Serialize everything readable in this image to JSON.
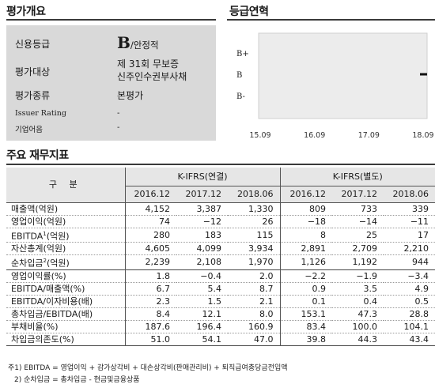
{
  "summary": {
    "title": "평가개요",
    "rows": [
      {
        "label": "신용등급",
        "value_main": "B",
        "value_suffix": "/안정적"
      },
      {
        "label": "평가대상",
        "value_line1": "제 31회 무보증",
        "value_line2": "신주인수권부사채"
      },
      {
        "label": "평가종류",
        "value": "본평가"
      },
      {
        "label": "Issuer Rating",
        "value": "-"
      },
      {
        "label": "기업어음",
        "value": "-"
      }
    ]
  },
  "history": {
    "title": "등급연혁",
    "chart_data": {
      "type": "line",
      "title": "",
      "y_categories": [
        "B+",
        "B",
        "B-"
      ],
      "x_ticks": [
        "15.09",
        "16.09",
        "17.09",
        "18.09"
      ],
      "series": [
        {
          "points": [
            {
              "x": "18.09",
              "y": "B"
            }
          ]
        }
      ],
      "grid": false
    }
  },
  "financials": {
    "title": "주요 재무지표",
    "gubun": "구 분",
    "group_consolidated": "K-IFRS(연결)",
    "group_separate": "K-IFRS(별도)",
    "years": [
      "2016.12",
      "2017.12",
      "2018.06",
      "2016.12",
      "2017.12",
      "2018.06"
    ],
    "rows": [
      {
        "label": "매출액(억원)",
        "values": [
          "4,152",
          "3,387",
          "1,330",
          "809",
          "733",
          "339"
        ]
      },
      {
        "label": "영업이익(억원)",
        "values": [
          "74",
          "−12",
          "26",
          "−18",
          "−14",
          "−11"
        ]
      },
      {
        "label": "EBITDA",
        "label_sup": "1",
        "label_tail": "(억원)",
        "values": [
          "280",
          "183",
          "115",
          "8",
          "25",
          "17"
        ]
      },
      {
        "label": "자산총계(억원)",
        "values": [
          "4,605",
          "4,099",
          "3,934",
          "2,891",
          "2,709",
          "2,210"
        ]
      },
      {
        "label": "순차입금",
        "label_sup": "2",
        "label_tail": "(억원)",
        "values": [
          "2,239",
          "2,108",
          "1,970",
          "1,126",
          "1,192",
          "944"
        ]
      },
      {
        "label": "영업이익률(%)",
        "values": [
          "1.8",
          "−0.4",
          "2.0",
          "−2.2",
          "−1.9",
          "−3.4"
        ]
      },
      {
        "label": "EBITDA/매출액(%)",
        "values": [
          "6.7",
          "5.4",
          "8.7",
          "0.9",
          "3.5",
          "4.9"
        ]
      },
      {
        "label": "EBITDA/이자비용(배)",
        "values": [
          "2.3",
          "1.5",
          "2.1",
          "0.1",
          "0.4",
          "0.5"
        ]
      },
      {
        "label": "총차입금/EBITDA(배)",
        "values": [
          "8.4",
          "12.1",
          "8.0",
          "153.1",
          "47.3",
          "28.8"
        ]
      },
      {
        "label": "부채비율(%)",
        "values": [
          "187.6",
          "196.4",
          "160.9",
          "83.4",
          "100.0",
          "104.1"
        ]
      },
      {
        "label": "차입금의존도(%)",
        "values": [
          "51.0",
          "54.1",
          "47.0",
          "39.8",
          "44.3",
          "43.4"
        ]
      }
    ],
    "notes": [
      "주1) EBITDA = 영업이익 + 감가상각비 + 대손상각비(판매관리비) + 퇴직급여충당금전입액",
      "2) 순차입금 = 총차입금 - 현금및금융상품"
    ]
  }
}
